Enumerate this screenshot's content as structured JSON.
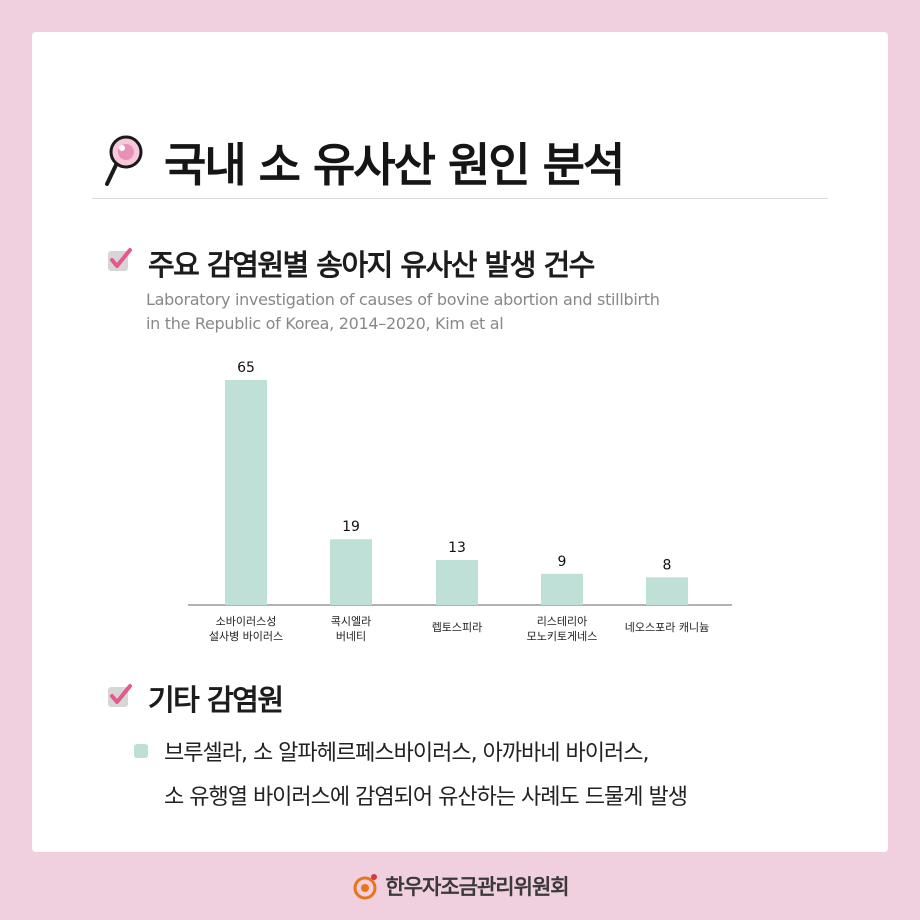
{
  "header": {
    "title": "국내 소 유사산 원인 분석",
    "icon": "magnifier-icon"
  },
  "section1": {
    "heading": "주요 감염원별 송아지 유사산 발생 건수",
    "source_line1": "Laboratory investigation of causes of bovine abortion and stillbirth",
    "source_line2": "in the Republic of Korea, 2014–2020, Kim et al",
    "icon": "checkbox-icon"
  },
  "chart_data": {
    "type": "bar",
    "categories": [
      [
        "소바이러스성",
        "설사병 바이러스"
      ],
      [
        "콕시엘라",
        "버네티"
      ],
      [
        "렙토스피라"
      ],
      [
        "리스테리아",
        "모노키토게네스"
      ],
      [
        "네오스포라 캐니늄"
      ]
    ],
    "values": [
      65,
      19,
      13,
      9,
      8
    ],
    "data_labels": [
      "65",
      "19",
      "13",
      "9",
      "8"
    ],
    "ylim": [
      0,
      65
    ],
    "bar_color": "#bfe0d6",
    "grid": false,
    "legend": false
  },
  "section2": {
    "heading": "기타 감염원",
    "icon": "checkbox-icon",
    "bullet_line1": "브루셀라, 소 알파헤르페스바이러스, 아까바네 바이러스,",
    "bullet_line2": "소 유행열 바이러스에 감염되어 유산하는 사례도 드물게 발생"
  },
  "footer": {
    "org_name": "한우자조금관리위원회",
    "logo": "hanwoo-logo-icon"
  },
  "colors": {
    "background": "#f0cfdf",
    "card": "#ffffff",
    "accent_pink": "#e5588f",
    "bar": "#bfe0d6"
  }
}
